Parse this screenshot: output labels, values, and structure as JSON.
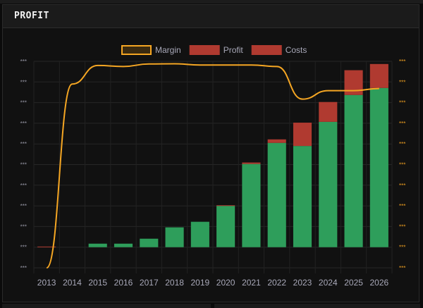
{
  "panel": {
    "title": "PROFIT"
  },
  "chart_data": {
    "type": "bar",
    "title": "",
    "categories": [
      "2013",
      "2014",
      "2015",
      "2016",
      "2017",
      "2018",
      "2019",
      "2020",
      "2021",
      "2022",
      "2023",
      "2024",
      "2025",
      "2026"
    ],
    "legend": {
      "placement": "top",
      "entries": [
        {
          "name": "Margin",
          "color": "#f5a623",
          "kind": "line"
        },
        {
          "name": "Profit",
          "color": "#b03a30",
          "kind": "bar"
        },
        {
          "name": "Costs",
          "color": "#b03a30",
          "kind": "bar"
        }
      ]
    },
    "series": [
      {
        "name": "Costs",
        "kind": "bar",
        "stack": true,
        "color": "#2e9e5b",
        "values": [
          0,
          0,
          0.17,
          0.17,
          0.41,
          0.96,
          1.23,
          2.0,
          4.03,
          5.05,
          4.9,
          6.07,
          7.37,
          7.71
        ]
      },
      {
        "name": "Profit",
        "kind": "bar",
        "stack": true,
        "color": "#b03a30",
        "values": [
          0.03,
          0,
          0,
          0,
          0,
          0,
          0,
          0.03,
          0.07,
          0.17,
          1.13,
          0.96,
          1.2,
          1.16
        ]
      },
      {
        "name": "Margin",
        "kind": "line",
        "axis": "right",
        "color": "#f5a623",
        "values": [
          -1,
          7.9,
          8.8,
          8.75,
          8.87,
          8.88,
          8.82,
          8.82,
          8.82,
          8.75,
          7.17,
          7.58,
          7.58,
          7.68
        ]
      }
    ],
    "ylim": [
      -1,
      9
    ],
    "y_tick_labels_left": [
      "***",
      "***",
      "***",
      "***",
      "***",
      "***",
      "***",
      "***",
      "***",
      "***",
      "***"
    ],
    "y_tick_labels_right": [
      "***",
      "***",
      "***",
      "***",
      "***",
      "***",
      "***",
      "***",
      "***",
      "***",
      "***"
    ],
    "left_tick_color": "#9a9aa8",
    "right_tick_color": "#f0a020",
    "grid": true
  }
}
